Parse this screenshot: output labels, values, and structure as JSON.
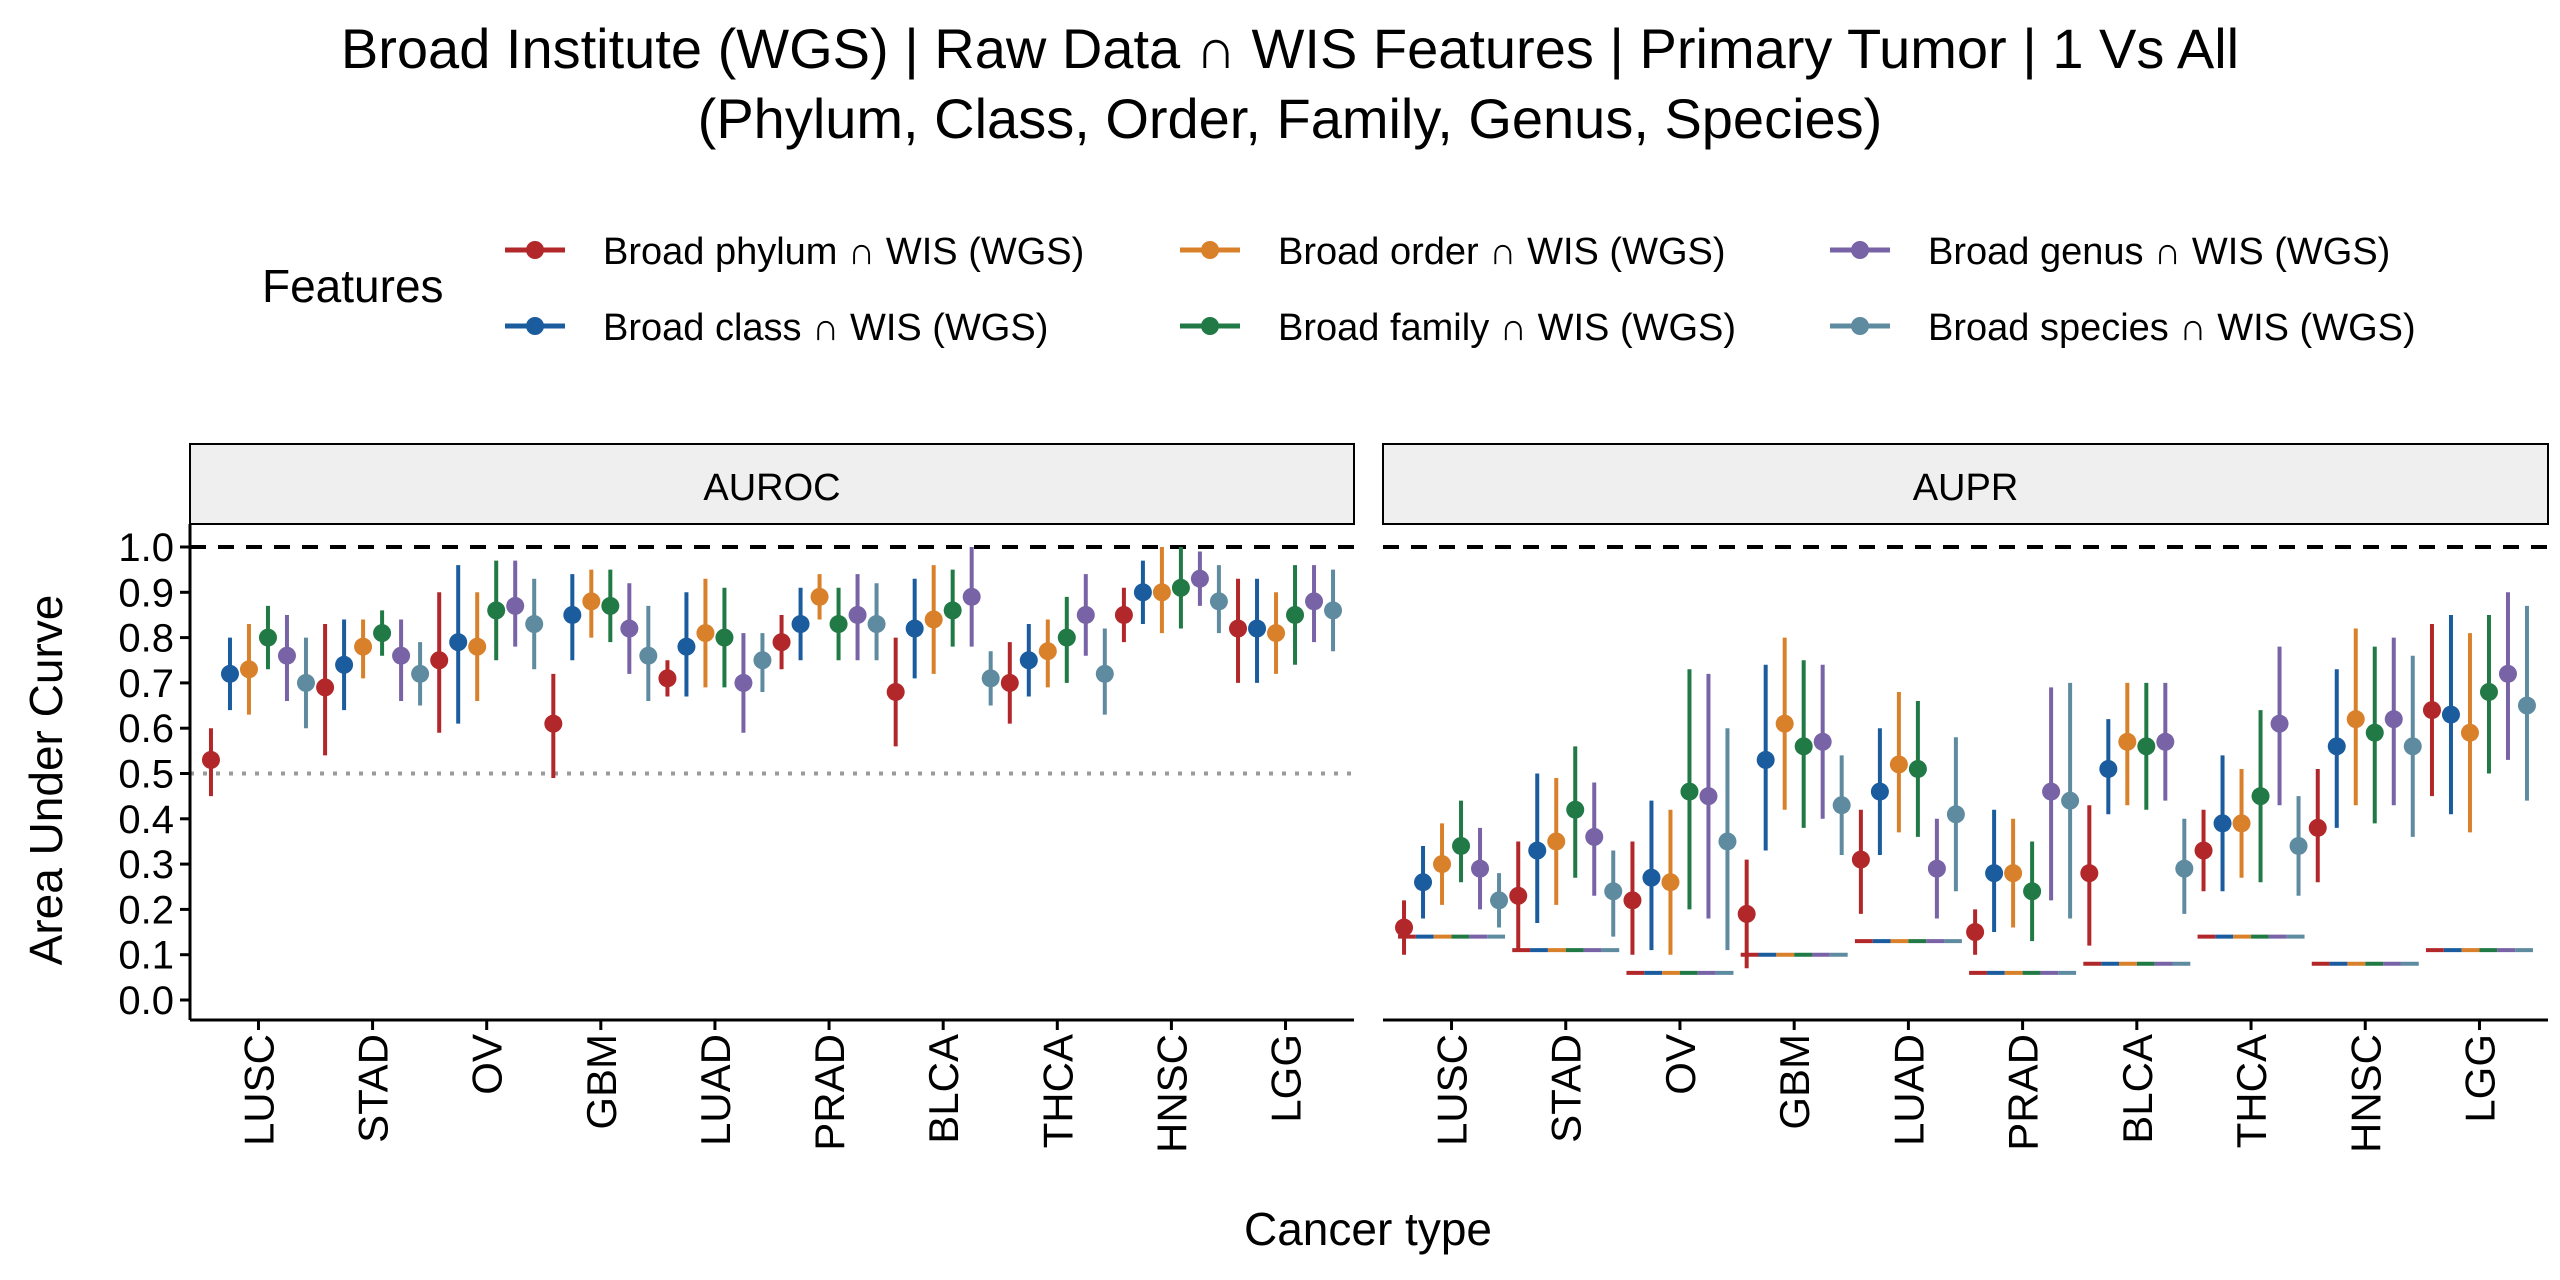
{
  "title_line1": "Broad Institute (WGS) | Raw Data ∩ WIS Features  | Primary Tumor | 1 Vs All",
  "title_line2": "(Phylum, Class, Order, Family, Genus, Species)",
  "legend_title": "Features",
  "ylabel": "Area Under Curve",
  "xlabel": "Cancer type",
  "chart_data": {
    "type": "scatter",
    "error_bars": true,
    "ylim": [
      0,
      1
    ],
    "yticks": [
      "0.0",
      "0.1",
      "0.2",
      "0.3",
      "0.4",
      "0.5",
      "0.6",
      "0.7",
      "0.8",
      "0.9",
      "1.0"
    ],
    "categories": [
      "LUSC",
      "STAD",
      "OV",
      "GBM",
      "LUAD",
      "PRAD",
      "BLCA",
      "THCA",
      "HNSC",
      "LGG"
    ],
    "series": [
      {
        "name": "Broad phylum ∩ WIS (WGS)",
        "color": "#b2282a"
      },
      {
        "name": "Broad class ∩ WIS (WGS)",
        "color": "#1a5c9e"
      },
      {
        "name": "Broad order ∩ WIS (WGS)",
        "color": "#d9802a"
      },
      {
        "name": "Broad family ∩ WIS (WGS)",
        "color": "#217a45"
      },
      {
        "name": "Broad genus ∩ WIS (WGS)",
        "color": "#7863a6"
      },
      {
        "name": "Broad species ∩ WIS (WGS)",
        "color": "#5f8ba0"
      }
    ],
    "legend_position": "top",
    "panels": [
      {
        "strip": "AUROC",
        "ref_line_dashed": 1.0,
        "ref_line_dotted": 0.5,
        "values": [
          [
            [
              0.53,
              0.45,
              0.6
            ],
            [
              0.72,
              0.64,
              0.8
            ],
            [
              0.73,
              0.63,
              0.83
            ],
            [
              0.8,
              0.73,
              0.87
            ],
            [
              0.76,
              0.66,
              0.85
            ],
            [
              0.7,
              0.6,
              0.8
            ]
          ],
          [
            [
              0.69,
              0.54,
              0.83
            ],
            [
              0.74,
              0.64,
              0.84
            ],
            [
              0.78,
              0.71,
              0.84
            ],
            [
              0.81,
              0.76,
              0.86
            ],
            [
              0.76,
              0.66,
              0.84
            ],
            [
              0.72,
              0.65,
              0.79
            ]
          ],
          [
            [
              0.75,
              0.59,
              0.9
            ],
            [
              0.79,
              0.61,
              0.96
            ],
            [
              0.78,
              0.66,
              0.9
            ],
            [
              0.86,
              0.75,
              0.97
            ],
            [
              0.87,
              0.78,
              0.97
            ],
            [
              0.83,
              0.73,
              0.93
            ]
          ],
          [
            [
              0.61,
              0.49,
              0.72
            ],
            [
              0.85,
              0.75,
              0.94
            ],
            [
              0.88,
              0.8,
              0.95
            ],
            [
              0.87,
              0.79,
              0.95
            ],
            [
              0.82,
              0.72,
              0.92
            ],
            [
              0.76,
              0.66,
              0.87
            ]
          ],
          [
            [
              0.71,
              0.67,
              0.75
            ],
            [
              0.78,
              0.67,
              0.9
            ],
            [
              0.81,
              0.69,
              0.93
            ],
            [
              0.8,
              0.69,
              0.91
            ],
            [
              0.7,
              0.59,
              0.81
            ],
            [
              0.75,
              0.68,
              0.81
            ]
          ],
          [
            [
              0.79,
              0.73,
              0.85
            ],
            [
              0.83,
              0.75,
              0.91
            ],
            [
              0.89,
              0.84,
              0.94
            ],
            [
              0.83,
              0.75,
              0.91
            ],
            [
              0.85,
              0.75,
              0.94
            ],
            [
              0.83,
              0.75,
              0.92
            ]
          ],
          [
            [
              0.68,
              0.56,
              0.8
            ],
            [
              0.82,
              0.71,
              0.93
            ],
            [
              0.84,
              0.72,
              0.96
            ],
            [
              0.86,
              0.78,
              0.95
            ],
            [
              0.89,
              0.78,
              1.0
            ],
            [
              0.71,
              0.65,
              0.77
            ]
          ],
          [
            [
              0.7,
              0.61,
              0.79
            ],
            [
              0.75,
              0.67,
              0.83
            ],
            [
              0.77,
              0.69,
              0.84
            ],
            [
              0.8,
              0.7,
              0.89
            ],
            [
              0.85,
              0.76,
              0.94
            ],
            [
              0.72,
              0.63,
              0.82
            ]
          ],
          [
            [
              0.85,
              0.79,
              0.91
            ],
            [
              0.9,
              0.83,
              0.97
            ],
            [
              0.9,
              0.81,
              1.0
            ],
            [
              0.91,
              0.82,
              1.0
            ],
            [
              0.93,
              0.87,
              0.99
            ],
            [
              0.88,
              0.81,
              0.96
            ]
          ],
          [
            [
              0.82,
              0.7,
              0.93
            ],
            [
              0.82,
              0.7,
              0.93
            ],
            [
              0.81,
              0.72,
              0.9
            ],
            [
              0.85,
              0.74,
              0.96
            ],
            [
              0.88,
              0.79,
              0.96
            ],
            [
              0.86,
              0.77,
              0.95
            ]
          ]
        ]
      },
      {
        "strip": "AUPR",
        "ref_line_dashed": 1.0,
        "baselines": [
          0.14,
          0.11,
          0.06,
          0.1,
          0.13,
          0.06,
          0.08,
          0.14,
          0.08,
          0.11
        ],
        "values": [
          [
            [
              0.16,
              0.1,
              0.22
            ],
            [
              0.26,
              0.18,
              0.34
            ],
            [
              0.3,
              0.21,
              0.39
            ],
            [
              0.34,
              0.26,
              0.44
            ],
            [
              0.29,
              0.2,
              0.38
            ],
            [
              0.22,
              0.16,
              0.28
            ]
          ],
          [
            [
              0.23,
              0.11,
              0.35
            ],
            [
              0.33,
              0.17,
              0.5
            ],
            [
              0.35,
              0.21,
              0.49
            ],
            [
              0.42,
              0.27,
              0.56
            ],
            [
              0.36,
              0.23,
              0.48
            ],
            [
              0.24,
              0.14,
              0.33
            ]
          ],
          [
            [
              0.22,
              0.1,
              0.35
            ],
            [
              0.27,
              0.11,
              0.44
            ],
            [
              0.26,
              0.1,
              0.42
            ],
            [
              0.46,
              0.2,
              0.73
            ],
            [
              0.45,
              0.18,
              0.72
            ],
            [
              0.35,
              0.11,
              0.6
            ]
          ],
          [
            [
              0.19,
              0.07,
              0.31
            ],
            [
              0.53,
              0.33,
              0.74
            ],
            [
              0.61,
              0.42,
              0.8
            ],
            [
              0.56,
              0.38,
              0.75
            ],
            [
              0.57,
              0.4,
              0.74
            ],
            [
              0.43,
              0.32,
              0.54
            ]
          ],
          [
            [
              0.31,
              0.19,
              0.42
            ],
            [
              0.46,
              0.32,
              0.6
            ],
            [
              0.52,
              0.37,
              0.68
            ],
            [
              0.51,
              0.36,
              0.66
            ],
            [
              0.29,
              0.18,
              0.4
            ],
            [
              0.41,
              0.24,
              0.58
            ]
          ],
          [
            [
              0.15,
              0.1,
              0.2
            ],
            [
              0.28,
              0.15,
              0.42
            ],
            [
              0.28,
              0.16,
              0.4
            ],
            [
              0.24,
              0.13,
              0.35
            ],
            [
              0.46,
              0.22,
              0.69
            ],
            [
              0.44,
              0.18,
              0.7
            ]
          ],
          [
            [
              0.28,
              0.12,
              0.43
            ],
            [
              0.51,
              0.41,
              0.62
            ],
            [
              0.57,
              0.43,
              0.7
            ],
            [
              0.56,
              0.42,
              0.7
            ],
            [
              0.57,
              0.44,
              0.7
            ],
            [
              0.29,
              0.19,
              0.4
            ]
          ],
          [
            [
              0.33,
              0.24,
              0.42
            ],
            [
              0.39,
              0.24,
              0.54
            ],
            [
              0.39,
              0.27,
              0.51
            ],
            [
              0.45,
              0.26,
              0.64
            ],
            [
              0.61,
              0.43,
              0.78
            ],
            [
              0.34,
              0.23,
              0.45
            ]
          ],
          [
            [
              0.38,
              0.26,
              0.51
            ],
            [
              0.56,
              0.38,
              0.73
            ],
            [
              0.62,
              0.43,
              0.82
            ],
            [
              0.59,
              0.39,
              0.78
            ],
            [
              0.62,
              0.43,
              0.8
            ],
            [
              0.56,
              0.36,
              0.76
            ]
          ],
          [
            [
              0.64,
              0.45,
              0.83
            ],
            [
              0.63,
              0.41,
              0.85
            ],
            [
              0.59,
              0.37,
              0.81
            ],
            [
              0.68,
              0.5,
              0.85
            ],
            [
              0.72,
              0.53,
              0.9
            ],
            [
              0.65,
              0.44,
              0.87
            ]
          ]
        ]
      }
    ]
  }
}
